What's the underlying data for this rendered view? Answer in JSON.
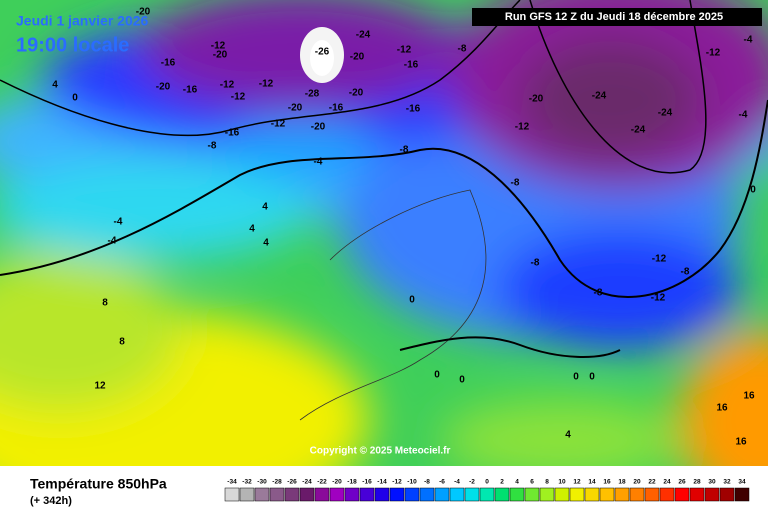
{
  "header": {
    "date": "Jeudi 1 janvier 2026",
    "time": "19:00 locale",
    "run": "Run GFS 12 Z du Jeudi 18 décembre 2025"
  },
  "footer": {
    "title": "Température 850hPa",
    "lead": "(+ 342h)",
    "copyright": "Copyright © 2025 Meteociel.fr"
  },
  "legend": {
    "labels": [
      "-34",
      "-32",
      "-30",
      "-28",
      "-26",
      "-24",
      "-22",
      "-20",
      "-18",
      "-16",
      "-14",
      "-12",
      "-10",
      "-8",
      "-6",
      "-4",
      "-2",
      "0",
      "2",
      "4",
      "6",
      "8",
      "10",
      "12",
      "14",
      "16",
      "18",
      "20",
      "22",
      "24",
      "26",
      "28",
      "30",
      "32",
      "34"
    ]
  },
  "map": {
    "labels": [
      "-20",
      "-12",
      "-20",
      "-16",
      "-20",
      "-16",
      "-12",
      "-12",
      "-12",
      "-16",
      "-12",
      "-20",
      "-8",
      "-20",
      "-28",
      "-16",
      "-20",
      "-26",
      "-24",
      "-20",
      "-12",
      "-16",
      "-8",
      "-16",
      "-20",
      "-24",
      "-24",
      "-24",
      "-12",
      "-12",
      "-4",
      "-4",
      "0",
      "-8",
      "-8",
      "-8",
      "-12",
      "-12",
      "-8",
      "-4",
      "-4",
      "4",
      "4",
      "4",
      "8",
      "8",
      "12",
      "16",
      "16",
      "16",
      "0",
      "4",
      "0",
      "0",
      "0",
      "0",
      "0",
      "4",
      "-4",
      "-8"
    ]
  }
}
